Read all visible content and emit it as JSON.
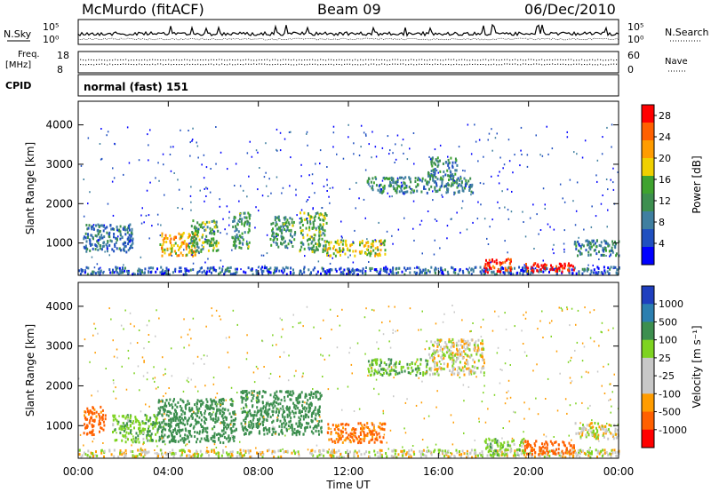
{
  "header": {
    "station": "McMurdo (fitACF)",
    "beam": "Beam 09",
    "date": "06/Dec/2010"
  },
  "strip": {
    "nsky_label": "N.Sky",
    "nsearch_label": "N.Search",
    "freq_label_1": "Freq.",
    "freq_label_2": "[MHz]",
    "nave_label": "Nave",
    "cpid_label": "CPID",
    "cpid_value": "normal (fast) 151",
    "noise_ticks_left": [
      "10^5",
      "10^0"
    ],
    "noise_ticks_right": [
      "10^5",
      "10^0"
    ],
    "freq_ticks": [
      "18",
      "8"
    ],
    "nave_ticks": [
      "60",
      "0"
    ]
  },
  "colors": {
    "power_scale": [
      "#0000ff",
      "#2050c0",
      "#3f7fa0",
      "#3d8f4f",
      "#3fa32f",
      "#f0d000",
      "#ff9c00",
      "#ff6000",
      "#ff0000"
    ],
    "velocity_scale": [
      "#ff0000",
      "#ff6000",
      "#ff9c00",
      "#c8c8c8",
      "#c8c8c8",
      "#7ed321",
      "#3d8f4f",
      "#2c7fb0",
      "#1f3fbf"
    ]
  },
  "chart_data": [
    {
      "type": "heatmap",
      "title": "",
      "xlabel": "Time UT",
      "ylabel": "Slant Range [km]",
      "x_ticks": [
        "00:00",
        "04:00",
        "08:00",
        "12:00",
        "16:00",
        "20:00",
        "00:00"
      ],
      "y_ticks": [
        1000,
        2000,
        3000,
        4000
      ],
      "ylim": [
        180,
        4600
      ],
      "xlim": [
        0,
        24
      ],
      "colorbar_label": "Power [dB]",
      "colorbar_ticks": [
        4,
        8,
        12,
        16,
        20,
        24,
        28
      ],
      "colorbar_range": [
        0,
        30
      ],
      "features": [
        {
          "t0": 0.0,
          "t1": 24.0,
          "r0": 230,
          "r1": 420,
          "level": 6
        },
        {
          "t0": 0.2,
          "t1": 2.4,
          "r0": 800,
          "r1": 1500,
          "level": 8
        },
        {
          "t0": 3.6,
          "t1": 5.2,
          "r0": 700,
          "r1": 1300,
          "level": 20
        },
        {
          "t0": 5.0,
          "t1": 6.2,
          "r0": 800,
          "r1": 1600,
          "level": 14
        },
        {
          "t0": 6.8,
          "t1": 7.6,
          "r0": 900,
          "r1": 1800,
          "level": 12
        },
        {
          "t0": 8.5,
          "t1": 9.6,
          "r0": 900,
          "r1": 1700,
          "level": 12
        },
        {
          "t0": 9.8,
          "t1": 11.0,
          "r0": 800,
          "r1": 1800,
          "level": 14
        },
        {
          "t0": 11.0,
          "t1": 13.6,
          "r0": 700,
          "r1": 1100,
          "level": 18
        },
        {
          "t0": 12.8,
          "t1": 17.5,
          "r0": 2300,
          "r1": 2700,
          "level": 10
        },
        {
          "t0": 15.5,
          "t1": 16.8,
          "r0": 2700,
          "r1": 3200,
          "level": 10
        },
        {
          "t0": 18.0,
          "t1": 19.2,
          "r0": 280,
          "r1": 650,
          "level": 28
        },
        {
          "t0": 19.8,
          "t1": 22.0,
          "r0": 300,
          "r1": 520,
          "level": 28
        },
        {
          "t0": 22.0,
          "t1": 24.0,
          "r0": 700,
          "r1": 1100,
          "level": 10
        }
      ]
    },
    {
      "type": "heatmap",
      "title": "",
      "xlabel": "Time UT",
      "ylabel": "Slant Range [km]",
      "x_ticks": [
        "00:00",
        "04:00",
        "08:00",
        "12:00",
        "16:00",
        "20:00",
        "00:00"
      ],
      "y_ticks": [
        1000,
        2000,
        3000,
        4000
      ],
      "ylim": [
        180,
        4600
      ],
      "xlim": [
        0,
        24
      ],
      "colorbar_label": "Velocity [m s^-1]",
      "colorbar_ticks": [
        1000,
        500,
        100,
        25,
        -25,
        -100,
        -500,
        -1000
      ],
      "colorbar_range": [
        -1000,
        1000
      ],
      "features": [
        {
          "t0": 0.0,
          "t1": 24.0,
          "r0": 230,
          "r1": 420,
          "velocity": 0
        },
        {
          "t0": 0.2,
          "t1": 1.2,
          "r0": 800,
          "r1": 1500,
          "velocity": -150
        },
        {
          "t0": 1.5,
          "t1": 3.5,
          "r0": 600,
          "r1": 1300,
          "velocity": 80
        },
        {
          "t0": 3.5,
          "t1": 7.0,
          "r0": 600,
          "r1": 1700,
          "velocity": 300
        },
        {
          "t0": 7.2,
          "t1": 10.8,
          "r0": 800,
          "r1": 1900,
          "velocity": 250
        },
        {
          "t0": 11.0,
          "t1": 13.6,
          "r0": 600,
          "r1": 1100,
          "velocity": -120
        },
        {
          "t0": 12.8,
          "t1": 15.5,
          "r0": 2300,
          "r1": 2700,
          "velocity": 80
        },
        {
          "t0": 15.5,
          "t1": 18.0,
          "r0": 2300,
          "r1": 3200,
          "velocity": 0
        },
        {
          "t0": 18.0,
          "t1": 19.8,
          "r0": 280,
          "r1": 700,
          "velocity": 60
        },
        {
          "t0": 19.8,
          "t1": 22.0,
          "r0": 300,
          "r1": 650,
          "velocity": -300
        },
        {
          "t0": 22.0,
          "t1": 24.0,
          "r0": 700,
          "r1": 1100,
          "velocity": 0
        }
      ]
    }
  ]
}
